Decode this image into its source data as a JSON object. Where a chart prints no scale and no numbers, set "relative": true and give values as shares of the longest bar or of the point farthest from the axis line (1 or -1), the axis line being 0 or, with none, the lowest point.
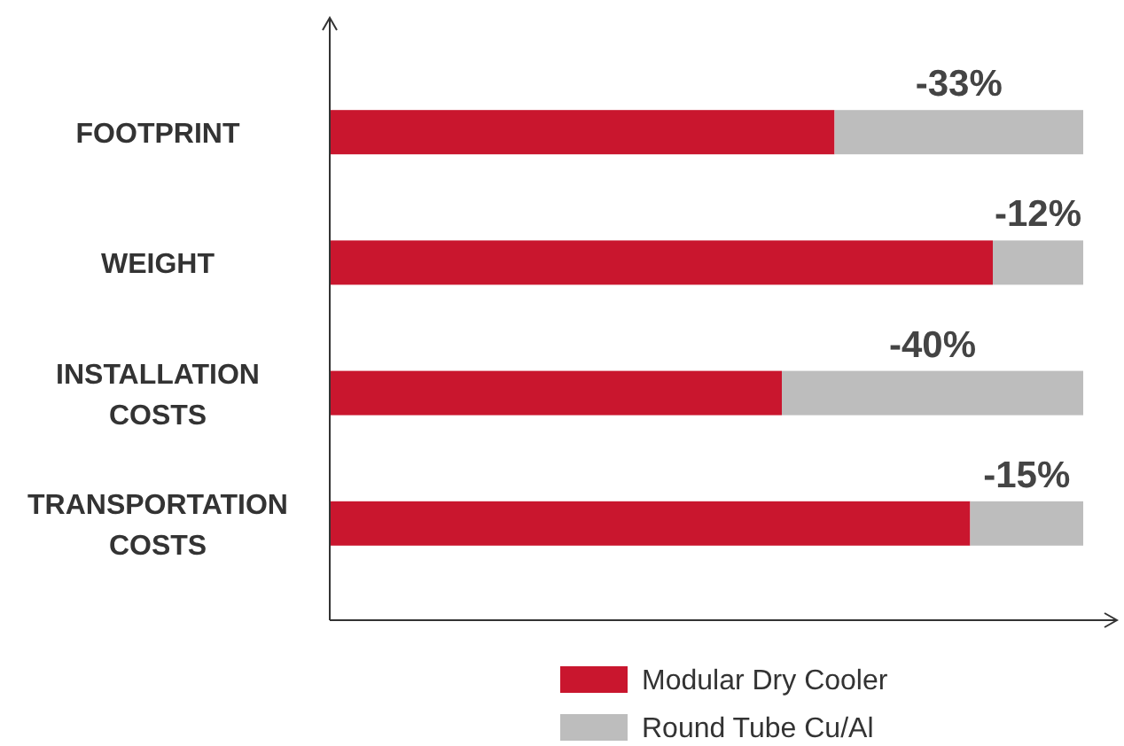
{
  "chart_data": {
    "type": "bar",
    "orientation": "horizontal",
    "stacked": true,
    "relative": true,
    "legend": "bottom",
    "categories": [
      "FOOTPRINT",
      "WEIGHT",
      "INSTALLATION COSTS",
      "TRANSPORTATION COSTS"
    ],
    "series": [
      {
        "name": "Modular Dry Cooler",
        "color": "#c9162e",
        "values": [
          0.67,
          0.88,
          0.6,
          0.85
        ]
      },
      {
        "name": "Round Tube Cu/Al",
        "color": "#bdbdbd",
        "values": [
          0.33,
          0.12,
          0.4,
          0.15
        ]
      }
    ],
    "annotations": [
      "-33%",
      "-12%",
      "-40%",
      "-15%"
    ]
  }
}
